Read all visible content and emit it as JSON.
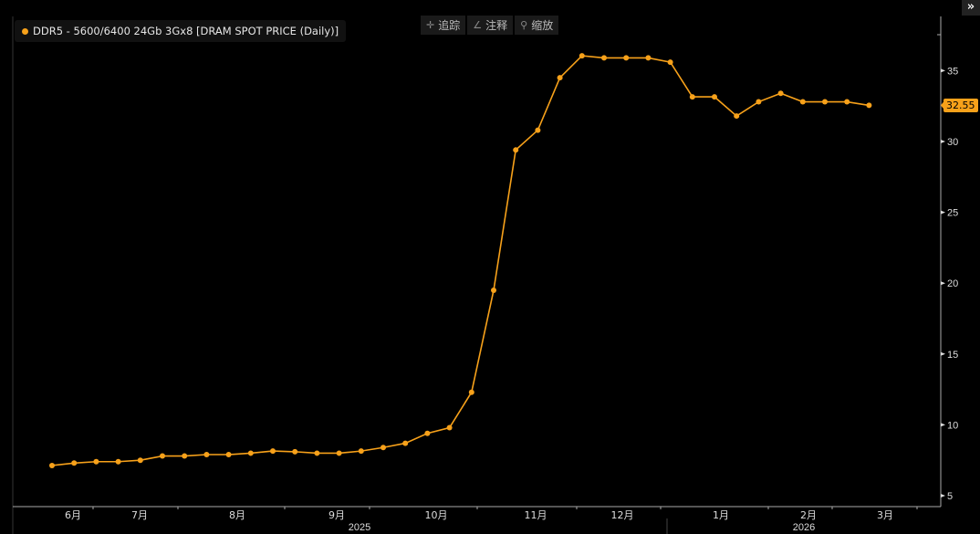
{
  "toolbar": {
    "items": [
      {
        "icon": "crosshair-icon",
        "label": "追踪"
      },
      {
        "icon": "pencil-icon",
        "label": "注释"
      },
      {
        "icon": "magnifier-icon",
        "label": "缩放"
      }
    ]
  },
  "expand_label": "»",
  "legend": {
    "label": "DDR5 - 5600/6400 24Gb 3Gx8 [DRAM SPOT PRICE (Daily)]"
  },
  "last_value_label": "32.55",
  "chart_data": {
    "type": "line",
    "title": "",
    "series": [
      {
        "name": "DDR5 - 5600/6400 24Gb 3Gx8 [DRAM SPOT PRICE (Daily)]",
        "color": "#f7a11a",
        "values": [
          7.13,
          7.3,
          7.4,
          7.4,
          7.5,
          7.8,
          7.8,
          7.9,
          7.9,
          8.0,
          8.15,
          8.1,
          8.0,
          8.0,
          8.15,
          8.4,
          8.7,
          9.4,
          9.8,
          12.3,
          19.5,
          29.4,
          30.8,
          34.5,
          36.05,
          35.9,
          35.9,
          35.9,
          35.6,
          33.15,
          33.15,
          31.8,
          32.8,
          33.4,
          32.8,
          32.8,
          32.8,
          32.55
        ]
      }
    ],
    "x_tick_labels": [
      "6月",
      "7月",
      "8月",
      "9月",
      "10月",
      "11月",
      "12月",
      "1月",
      "2月",
      "3月"
    ],
    "x_year_labels": [
      "2025",
      "2026"
    ],
    "y_ticks": [
      5,
      10,
      15,
      20,
      25,
      30,
      35
    ],
    "ylim": [
      4.5,
      38.5
    ],
    "y_axis_side": "right",
    "grid": false,
    "legend_position": "top-left",
    "background": "#000000"
  }
}
